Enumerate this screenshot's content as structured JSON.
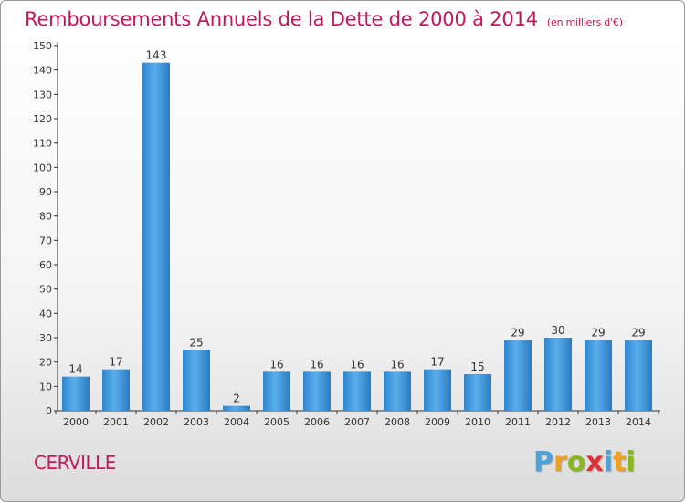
{
  "title": {
    "main": "Remboursements Annuels de la Dette de 2000 à 2014",
    "unit": "(en milliers d'€)"
  },
  "location": "CERVILLE",
  "brand": {
    "letters": [
      "P",
      "r",
      "o",
      "x",
      "i",
      "t",
      "i"
    ],
    "colors": [
      "#4da3d9",
      "#f0a020",
      "#88b820",
      "#e03030",
      "#4da3d9",
      "#f0a020",
      "#88b820"
    ]
  },
  "chart_data": {
    "type": "bar",
    "categories": [
      "2000",
      "2001",
      "2002",
      "2003",
      "2004",
      "2005",
      "2006",
      "2007",
      "2008",
      "2009",
      "2010",
      "2011",
      "2012",
      "2013",
      "2014"
    ],
    "values": [
      14,
      17,
      143,
      25,
      2,
      16,
      16,
      16,
      16,
      17,
      15,
      29,
      30,
      29,
      29
    ],
    "ylim": [
      0,
      150
    ],
    "yticks": [
      0,
      10,
      20,
      30,
      40,
      50,
      60,
      70,
      80,
      90,
      100,
      110,
      120,
      130,
      140,
      150
    ],
    "grid": false,
    "bar_color": "#3d96da"
  }
}
